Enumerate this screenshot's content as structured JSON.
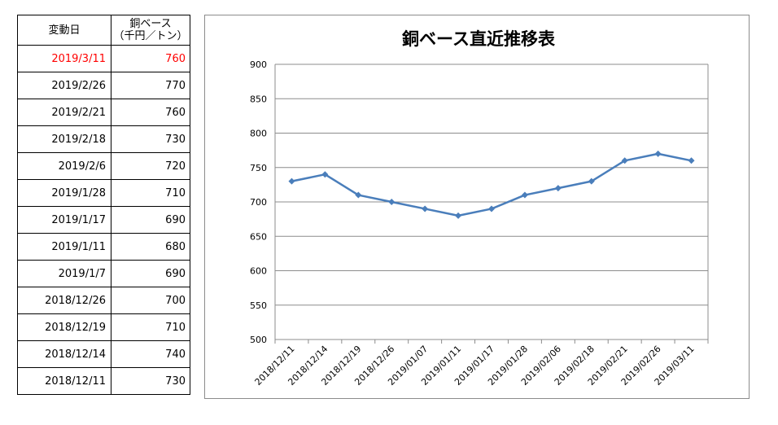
{
  "table": {
    "header": {
      "date_label": "変動日",
      "price_label_line1": "銅ベース",
      "price_label_line2": "（千円／トン）"
    },
    "rows": [
      {
        "date": "2019/3/11",
        "price": "760",
        "highlight": true
      },
      {
        "date": "2019/2/26",
        "price": "770"
      },
      {
        "date": "2019/2/21",
        "price": "760"
      },
      {
        "date": "2019/2/18",
        "price": "730"
      },
      {
        "date": "2019/2/6",
        "price": "720"
      },
      {
        "date": "2019/1/28",
        "price": "710"
      },
      {
        "date": "2019/1/17",
        "price": "690"
      },
      {
        "date": "2019/1/11",
        "price": "680"
      },
      {
        "date": "2019/1/7",
        "price": "690"
      },
      {
        "date": "2018/12/26",
        "price": "700"
      },
      {
        "date": "2018/12/19",
        "price": "710"
      },
      {
        "date": "2018/12/14",
        "price": "740"
      },
      {
        "date": "2018/12/11",
        "price": "730"
      }
    ],
    "highlight_color": "#ff0000"
  },
  "chart_data": {
    "type": "line",
    "title": "銅ベース直近推移表",
    "categories": [
      "2018/12/11",
      "2018/12/14",
      "2018/12/19",
      "2018/12/26",
      "2019/01/07",
      "2019/01/11",
      "2019/01/17",
      "2019/01/28",
      "2019/02/06",
      "2019/02/18",
      "2019/02/21",
      "2019/02/26",
      "2019/03/11"
    ],
    "series": [
      {
        "values": [
          730,
          740,
          710,
          700,
          690,
          680,
          690,
          710,
          720,
          730,
          760,
          770,
          760
        ],
        "color": "#4a7ebb"
      }
    ],
    "ylim": [
      500,
      900
    ],
    "yticks": [
      "900",
      "850",
      "800",
      "750",
      "700",
      "650",
      "600",
      "550",
      "500"
    ],
    "grid": true,
    "legend": "none",
    "xlabel": "",
    "ylabel": ""
  }
}
